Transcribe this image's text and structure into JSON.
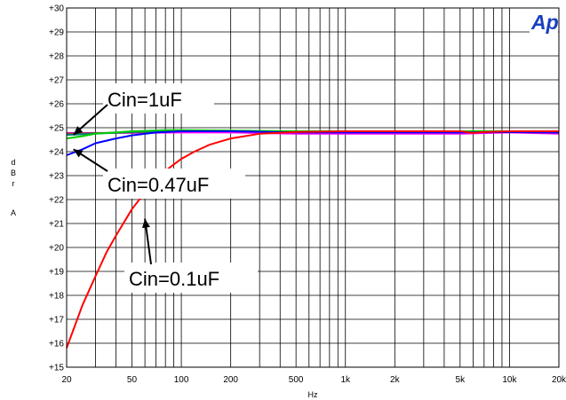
{
  "chart_data": {
    "type": "line",
    "title": "",
    "xlabel": "Hz",
    "ylabel_lines": [
      "d",
      "B",
      "r",
      "",
      "A"
    ],
    "x_scale": "log",
    "xlim": [
      20,
      20000
    ],
    "ylim": [
      15,
      30
    ],
    "grid": true,
    "logo": "Ap",
    "x_ticks": [
      {
        "value": 20,
        "label": "20"
      },
      {
        "value": 50,
        "label": "50"
      },
      {
        "value": 100,
        "label": "100"
      },
      {
        "value": 200,
        "label": "200"
      },
      {
        "value": 500,
        "label": "500"
      },
      {
        "value": 1000,
        "label": "1k"
      },
      {
        "value": 2000,
        "label": "2k"
      },
      {
        "value": 5000,
        "label": "5k"
      },
      {
        "value": 10000,
        "label": "10k"
      },
      {
        "value": 20000,
        "label": "20k"
      }
    ],
    "y_ticks": [
      {
        "value": 30,
        "label": "+30"
      },
      {
        "value": 29,
        "label": "+29"
      },
      {
        "value": 28,
        "label": "+28"
      },
      {
        "value": 27,
        "label": "+27"
      },
      {
        "value": 26,
        "label": "+26"
      },
      {
        "value": 25,
        "label": "+25"
      },
      {
        "value": 24,
        "label": "+24"
      },
      {
        "value": 23,
        "label": "+23"
      },
      {
        "value": 22,
        "label": "+22"
      },
      {
        "value": 21,
        "label": "+21"
      },
      {
        "value": 20,
        "label": "+20"
      },
      {
        "value": 19,
        "label": "+19"
      },
      {
        "value": 18,
        "label": "+18"
      },
      {
        "value": 17,
        "label": "+17"
      },
      {
        "value": 16,
        "label": "+16"
      },
      {
        "value": 15,
        "label": "+15"
      }
    ],
    "series": [
      {
        "color": "#ff00ff",
        "points": [
          [
            20,
            24.78
          ],
          [
            30,
            24.78
          ],
          [
            50,
            24.78
          ],
          [
            100,
            24.8
          ],
          [
            200,
            24.8
          ],
          [
            500,
            24.75
          ],
          [
            1000,
            24.75
          ],
          [
            2000,
            24.75
          ],
          [
            5000,
            24.75
          ],
          [
            10000,
            24.8
          ],
          [
            20000,
            24.75
          ]
        ]
      },
      {
        "color": "#8b4513",
        "points": [
          [
            20,
            24.75
          ],
          [
            50,
            24.8
          ],
          [
            100,
            24.85
          ],
          [
            200,
            24.85
          ],
          [
            500,
            24.85
          ],
          [
            1000,
            24.85
          ],
          [
            2000,
            24.85
          ],
          [
            5000,
            24.85
          ],
          [
            10000,
            24.82
          ],
          [
            20000,
            24.8
          ]
        ]
      },
      {
        "color": "#008080",
        "points": [
          [
            20,
            24.7
          ],
          [
            50,
            24.82
          ],
          [
            100,
            24.88
          ],
          [
            200,
            24.85
          ],
          [
            500,
            24.82
          ],
          [
            1000,
            24.82
          ],
          [
            2000,
            24.82
          ],
          [
            5000,
            24.82
          ],
          [
            10000,
            24.85
          ],
          [
            20000,
            24.8
          ]
        ]
      },
      {
        "color": "#00cc00",
        "points": [
          [
            20,
            24.55
          ],
          [
            25,
            24.65
          ],
          [
            30,
            24.75
          ],
          [
            50,
            24.85
          ],
          [
            80,
            24.9
          ],
          [
            100,
            24.9
          ],
          [
            200,
            24.88
          ],
          [
            500,
            24.85
          ],
          [
            1000,
            24.85
          ],
          [
            2000,
            24.85
          ],
          [
            5000,
            24.85
          ],
          [
            10000,
            24.85
          ],
          [
            20000,
            24.85
          ]
        ]
      },
      {
        "color": "#0000ff",
        "points": [
          [
            20,
            23.85
          ],
          [
            25,
            24.1
          ],
          [
            30,
            24.35
          ],
          [
            40,
            24.55
          ],
          [
            50,
            24.68
          ],
          [
            70,
            24.8
          ],
          [
            100,
            24.85
          ],
          [
            200,
            24.85
          ],
          [
            500,
            24.8
          ],
          [
            1000,
            24.8
          ],
          [
            2000,
            24.8
          ],
          [
            5000,
            24.8
          ],
          [
            10000,
            24.82
          ],
          [
            20000,
            24.8
          ]
        ]
      },
      {
        "color": "#ff0000",
        "points": [
          [
            20,
            15.8
          ],
          [
            25,
            17.6
          ],
          [
            30,
            18.8
          ],
          [
            35,
            19.8
          ],
          [
            40,
            20.5
          ],
          [
            50,
            21.6
          ],
          [
            60,
            22.3
          ],
          [
            70,
            22.8
          ],
          [
            80,
            23.2
          ],
          [
            100,
            23.7
          ],
          [
            120,
            24.0
          ],
          [
            150,
            24.3
          ],
          [
            200,
            24.55
          ],
          [
            300,
            24.75
          ],
          [
            500,
            24.82
          ],
          [
            1000,
            24.85
          ],
          [
            2000,
            24.85
          ],
          [
            5000,
            24.85
          ],
          [
            6000,
            24.78
          ],
          [
            7000,
            24.82
          ],
          [
            10000,
            24.85
          ],
          [
            20000,
            24.85
          ]
        ]
      }
    ],
    "annotations": [
      {
        "text": "Cin=1uF",
        "target": [
          22,
          24.7
        ]
      },
      {
        "text": "Cin=0.47uF",
        "target": [
          22,
          24.1
        ]
      },
      {
        "text": "Cin=0.1uF",
        "target": [
          60,
          21.2
        ]
      }
    ]
  }
}
